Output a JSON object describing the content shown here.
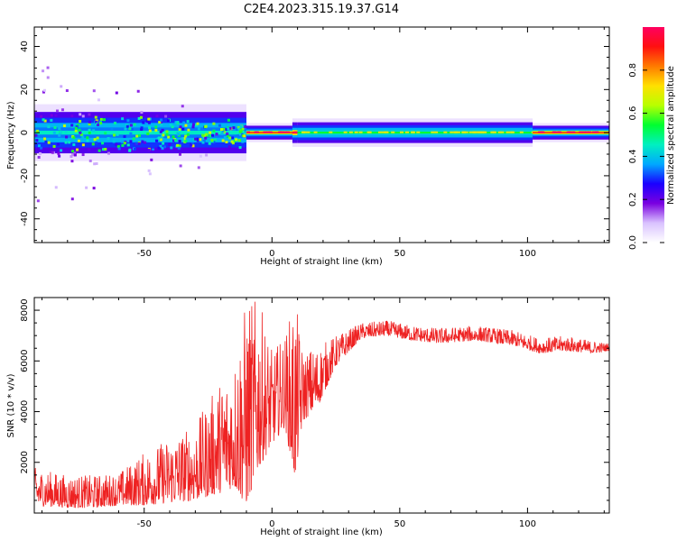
{
  "title": "C2E4.2023.315.19.37.G14",
  "chart_data": [
    {
      "type": "heatmap",
      "xlabel": "Height of straight line (km)",
      "ylabel": "Frequency (Hz)",
      "xlim": [
        -93,
        132
      ],
      "ylim": [
        -51,
        49
      ],
      "xticks": [
        -50,
        0,
        50,
        100
      ],
      "yticks": [
        -40,
        -20,
        0,
        20,
        40
      ],
      "colorbar": {
        "label": "Normalized spectral amplitude",
        "range": [
          0,
          1
        ],
        "ticks": [
          "0.0",
          "0.2",
          "0.4",
          "0.6",
          "0.8"
        ],
        "colormap": [
          "#ffffff",
          "#d9c2ff",
          "#7a00e0",
          "#1a00ff",
          "#00a8ff",
          "#00f0c0",
          "#00ff30",
          "#b8ff00",
          "#ffe000",
          "#ff7a00",
          "#ff1010",
          "#ff0060"
        ]
      },
      "band": {
        "center_hz": 0,
        "segments": [
          {
            "x_from": -93,
            "x_to": -10,
            "half_width_hz": 6,
            "peak": 0.45,
            "scatter": true
          },
          {
            "x_from": -10,
            "x_to": 8,
            "half_width_hz": 2,
            "peak": 0.9,
            "scatter": false
          },
          {
            "x_from": 8,
            "x_to": 10,
            "half_width_hz": 3,
            "peak": 0.95,
            "scatter": false
          },
          {
            "x_from": 10,
            "x_to": 102,
            "half_width_hz": 3,
            "peak": 0.55,
            "scatter": false
          },
          {
            "x_from": 102,
            "x_to": 132,
            "half_width_hz": 2,
            "peak": 0.9,
            "scatter": false
          }
        ]
      },
      "grid": false
    },
    {
      "type": "line",
      "xlabel": "Height of straight line (km)",
      "ylabel": "SNR (10 * v/v)",
      "xlim": [
        -93,
        132
      ],
      "ylim": [
        0,
        8500
      ],
      "xticks": [
        -50,
        0,
        50,
        100
      ],
      "yticks": [
        2000,
        4000,
        6000,
        8000
      ],
      "series": [
        {
          "color": "#ee2222",
          "envelope": [
            {
              "x": -93,
              "lo": 300,
              "hi": 1800
            },
            {
              "x": -80,
              "lo": 200,
              "hi": 1500
            },
            {
              "x": -70,
              "lo": 200,
              "hi": 1500
            },
            {
              "x": -60,
              "lo": 300,
              "hi": 1600
            },
            {
              "x": -50,
              "lo": 300,
              "hi": 2400
            },
            {
              "x": -40,
              "lo": 400,
              "hi": 3000
            },
            {
              "x": -30,
              "lo": 500,
              "hi": 3500
            },
            {
              "x": -20,
              "lo": 800,
              "hi": 5300
            },
            {
              "x": -15,
              "lo": 1000,
              "hi": 6000
            },
            {
              "x": -10,
              "lo": 300,
              "hi": 8500
            },
            {
              "x": -5,
              "lo": 1800,
              "hi": 8400
            },
            {
              "x": 0,
              "lo": 2700,
              "hi": 6400
            },
            {
              "x": 5,
              "lo": 3400,
              "hi": 7000
            },
            {
              "x": 9,
              "lo": 1300,
              "hi": 8500
            },
            {
              "x": 12,
              "lo": 3600,
              "hi": 6400
            },
            {
              "x": 18,
              "lo": 4200,
              "hi": 6600
            },
            {
              "x": 25,
              "lo": 5800,
              "hi": 7000
            },
            {
              "x": 35,
              "lo": 6900,
              "hi": 7500
            },
            {
              "x": 45,
              "lo": 7000,
              "hi": 7600
            },
            {
              "x": 55,
              "lo": 6800,
              "hi": 7400
            },
            {
              "x": 65,
              "lo": 6700,
              "hi": 7300
            },
            {
              "x": 80,
              "lo": 6800,
              "hi": 7400
            },
            {
              "x": 95,
              "lo": 6600,
              "hi": 7200
            },
            {
              "x": 105,
              "lo": 6300,
              "hi": 6900
            },
            {
              "x": 115,
              "lo": 6400,
              "hi": 7000
            },
            {
              "x": 125,
              "lo": 6300,
              "hi": 6800
            },
            {
              "x": 132,
              "lo": 6400,
              "hi": 6700
            }
          ]
        }
      ],
      "grid": false
    }
  ]
}
